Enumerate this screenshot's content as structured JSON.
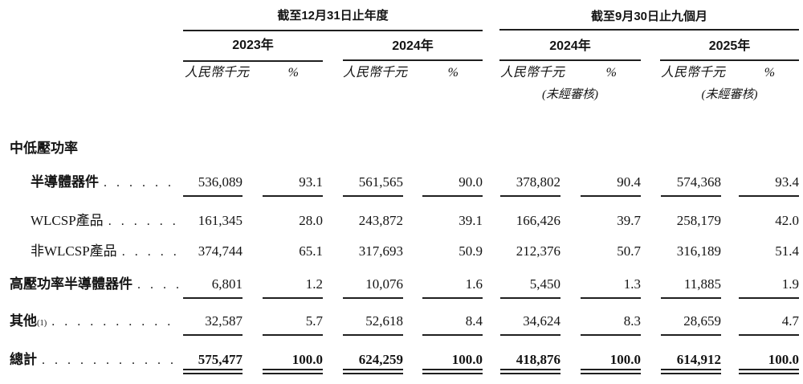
{
  "colors": {
    "background": "#ffffff",
    "text": "#141414",
    "line": "#1f1f1f"
  },
  "header": {
    "groups": [
      {
        "title": "截至12月31日止年度",
        "years": [
          "2023年",
          "2024年"
        ],
        "unaudited": [
          "",
          ""
        ]
      },
      {
        "title": "截至9月30日止九個月",
        "years": [
          "2024年",
          "2025年"
        ],
        "unaudited": [
          "(未經審核)",
          "(未經審核)"
        ]
      }
    ],
    "unit_label": "人民幣千元",
    "percent_label": "%"
  },
  "rows": [
    {
      "label": "中低壓功率",
      "values": []
    },
    {
      "label": "半導體器件",
      "values": [
        "536,089",
        "93.1",
        "561,565",
        "90.0",
        "378,802",
        "90.4",
        "574,368",
        "93.4"
      ]
    },
    {
      "label": "WLCSP產品",
      "values": [
        "161,345",
        "28.0",
        "243,872",
        "39.1",
        "166,426",
        "39.7",
        "258,179",
        "42.0"
      ]
    },
    {
      "label": "非WLCSP產品",
      "values": [
        "374,744",
        "65.1",
        "317,693",
        "50.9",
        "212,376",
        "50.7",
        "316,189",
        "51.4"
      ]
    },
    {
      "label": "高壓功率半導體器件",
      "values": [
        "6,801",
        "1.2",
        "10,076",
        "1.6",
        "5,450",
        "1.3",
        "11,885",
        "1.9"
      ]
    },
    {
      "label": "其他",
      "label_sup": "(1)",
      "values": [
        "32,587",
        "5.7",
        "52,618",
        "8.4",
        "34,624",
        "8.3",
        "28,659",
        "4.7"
      ]
    },
    {
      "label": "總計",
      "values": [
        "575,477",
        "100.0",
        "624,259",
        "100.0",
        "418,876",
        "100.0",
        "614,912",
        "100.0"
      ]
    }
  ]
}
